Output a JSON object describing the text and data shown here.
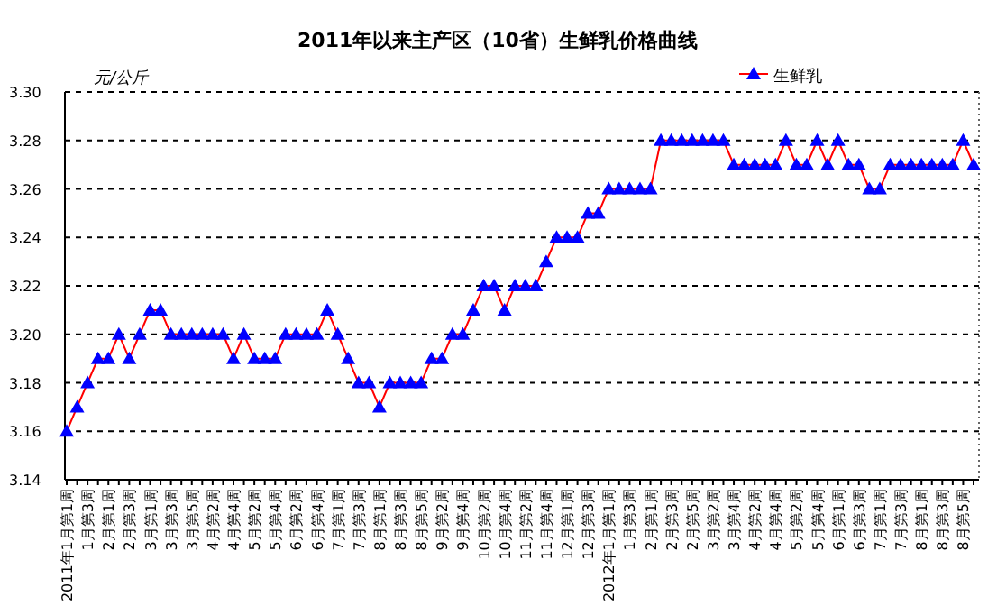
{
  "chart_data": {
    "type": "line",
    "title": "2011年以来主产区（10省）生鲜乳价格曲线",
    "ylabel": "元/公斤",
    "categories": [
      "2011年1月第1周",
      null,
      "1月第3周",
      null,
      "2月第1周",
      null,
      "2月第3周",
      null,
      "3月第1周",
      null,
      "3月第3周",
      null,
      "3月第5周",
      null,
      "4月第2周",
      null,
      "4月第4周",
      null,
      "5月第2周",
      null,
      "5月第4周",
      null,
      "6月第2周",
      null,
      "6月第4周",
      null,
      "7月第1周",
      null,
      "7月第3周",
      null,
      "8月第1周",
      null,
      "8月第3周",
      null,
      "8月第5周",
      null,
      "9月第2周",
      null,
      "9月第4周",
      null,
      "10月第2周",
      null,
      "10月第4周",
      null,
      "11月第2周",
      null,
      "11月第4周",
      null,
      "12月第1周",
      null,
      "12月第3周",
      null,
      "2012年1月第1周",
      null,
      "1月第3周",
      null,
      "2月第1周",
      null,
      "2月第3周",
      null,
      "2月第5周",
      null,
      "3月第2周",
      null,
      "3月第4周",
      null,
      "4月第2周",
      null,
      "4月第4周",
      null,
      "5月第2周",
      null,
      "5月第4周",
      null,
      "6月第1周",
      null,
      "6月第3周",
      null,
      "7月第1周",
      null,
      "7月第3周",
      null,
      "8月第1周",
      null,
      "8月第3周",
      null,
      "8月第5周",
      null
    ],
    "series": [
      {
        "name": "生鲜乳",
        "color": "#ff0000",
        "values": [
          3.16,
          3.17,
          3.18,
          3.19,
          3.19,
          3.2,
          3.19,
          3.2,
          3.21,
          3.21,
          3.2,
          3.2,
          3.2,
          3.2,
          3.2,
          3.2,
          3.19,
          3.2,
          3.19,
          3.19,
          3.19,
          3.2,
          3.2,
          3.2,
          3.2,
          3.21,
          3.2,
          3.19,
          3.18,
          3.18,
          3.17,
          3.18,
          3.18,
          3.18,
          3.18,
          3.19,
          3.19,
          3.2,
          3.2,
          3.21,
          3.22,
          3.22,
          3.21,
          3.22,
          3.22,
          3.22,
          3.23,
          3.24,
          3.24,
          3.24,
          3.25,
          3.25,
          3.26,
          3.26,
          3.26,
          3.26,
          3.26,
          3.28,
          3.28,
          3.28,
          3.28,
          3.28,
          3.28,
          3.28,
          3.27,
          3.27,
          3.27,
          3.27,
          3.27,
          3.28,
          3.27,
          3.27,
          3.28,
          3.27,
          3.28,
          3.27,
          3.27,
          3.26,
          3.26,
          3.27,
          3.27,
          3.27,
          3.27,
          3.27,
          3.27,
          3.27,
          3.28,
          3.27
        ]
      }
    ],
    "ylim": [
      3.14,
      3.3
    ],
    "yticks": [
      {
        "value": 3.14,
        "label": "3.14"
      },
      {
        "value": 3.16,
        "label": "3.16"
      },
      {
        "value": 3.18,
        "label": "3.18"
      },
      {
        "value": 3.2,
        "label": "3.20"
      },
      {
        "value": 3.22,
        "label": "3.22"
      },
      {
        "value": 3.24,
        "label": "3.24"
      },
      {
        "value": 3.26,
        "label": "3.26"
      },
      {
        "value": 3.28,
        "label": "3.28"
      },
      {
        "value": 3.3,
        "label": "3.30"
      }
    ],
    "grid": "y",
    "legend": "top right",
    "marker": "triangle",
    "line_style": "solid"
  }
}
